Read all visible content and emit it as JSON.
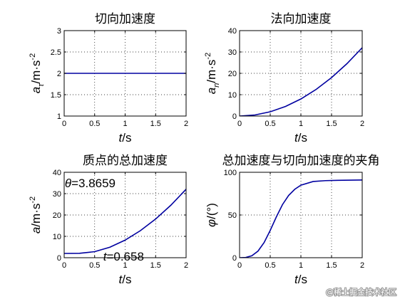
{
  "chart_data": [
    {
      "type": "line",
      "title": "切向加速度",
      "xlabel_parts": [
        "t",
        "/s"
      ],
      "ylabel_parts": [
        "a",
        "τ",
        "/m·s",
        "-2"
      ],
      "xlim": [
        0,
        2
      ],
      "ylim": [
        1,
        3
      ],
      "xticks": [
        "0",
        "0.5",
        "1",
        "1.5",
        "2"
      ],
      "yticks": [
        "1",
        "1.5",
        "2",
        "2.5",
        "3"
      ],
      "grid": true,
      "color": "#0000a0",
      "series": [
        {
          "x": [
            0,
            0.5,
            1,
            1.5,
            2
          ],
          "y": [
            2,
            2,
            2,
            2,
            2
          ]
        }
      ]
    },
    {
      "type": "line",
      "title": "法向加速度",
      "xlabel_parts": [
        "t",
        "/s"
      ],
      "ylabel_parts": [
        "a",
        "n",
        "/m·s",
        "-2"
      ],
      "xlim": [
        0,
        2
      ],
      "ylim": [
        0,
        40
      ],
      "xticks": [
        "0",
        "0.5",
        "1",
        "1.5",
        "2"
      ],
      "yticks": [
        "0",
        "10",
        "20",
        "30",
        "40"
      ],
      "grid": true,
      "color": "#0000a0",
      "series": [
        {
          "x": [
            0,
            0.25,
            0.5,
            0.75,
            1,
            1.25,
            1.5,
            1.75,
            2
          ],
          "y": [
            0,
            0.5,
            2,
            4.5,
            8,
            12.5,
            18,
            24.5,
            32
          ]
        }
      ]
    },
    {
      "type": "line",
      "title": "质点的总加速度",
      "xlabel_parts": [
        "t",
        "/s"
      ],
      "ylabel_parts": [
        "a",
        "/m·s",
        "-2"
      ],
      "xlim": [
        0,
        2
      ],
      "ylim": [
        0,
        40
      ],
      "xticks": [
        "0",
        "0.5",
        "1",
        "1.5",
        "2"
      ],
      "yticks": [
        "0",
        "10",
        "20",
        "30",
        "40"
      ],
      "grid": true,
      "color": "#0000a0",
      "annotations": [
        {
          "symbol": "θ",
          "text": "=3.8659"
        },
        {
          "symbol": "t",
          "text": "=0.658"
        }
      ],
      "series": [
        {
          "x": [
            0,
            0.25,
            0.5,
            0.75,
            1,
            1.25,
            1.5,
            1.75,
            2
          ],
          "y": [
            2,
            2.06,
            2.83,
            4.92,
            8.25,
            12.66,
            18.11,
            24.58,
            32.06
          ]
        }
      ]
    },
    {
      "type": "line",
      "title": "总加速度与切向加速度的夹角",
      "xlabel_parts": [
        "t",
        "/s"
      ],
      "ylabel_parts": [
        "φ",
        "/(°)"
      ],
      "xlim": [
        0,
        2
      ],
      "ylim": [
        0,
        100
      ],
      "xticks": [
        "0",
        "0.5",
        "1",
        "1.5",
        "2"
      ],
      "yticks": [
        "0",
        "50",
        "100"
      ],
      "grid": true,
      "color": "#0000a0",
      "series": [
        {
          "x": [
            0,
            0.1,
            0.2,
            0.3,
            0.4,
            0.5,
            0.6,
            0.7,
            0.8,
            0.9,
            1.0,
            1.2,
            1.4,
            1.6,
            1.8,
            2.0
          ],
          "y": [
            0,
            0.3,
            2.3,
            7.7,
            17.7,
            32.0,
            47.8,
            62.2,
            72.9,
            80.1,
            84.9,
            89.2,
            90.2,
            90.6,
            90.8,
            91.0
          ]
        }
      ]
    }
  ],
  "watermark": "@稀土掘金技术社区"
}
